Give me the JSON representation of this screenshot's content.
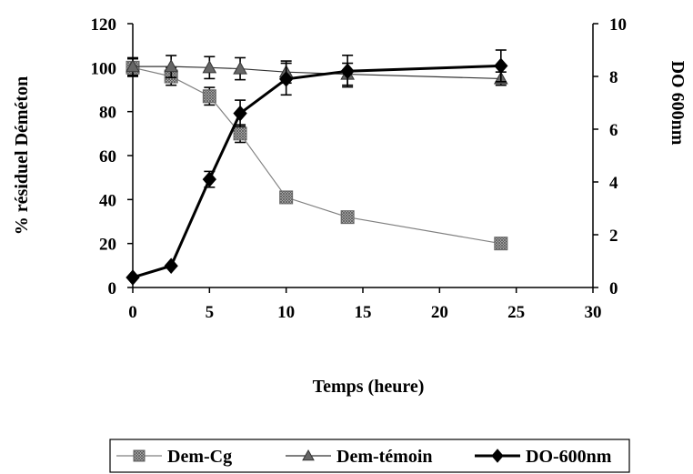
{
  "chart_data": {
    "type": "line",
    "xlabel": "Temps (heure)",
    "ylabel_left": "% résiduel Déméton",
    "ylabel_right": "DO 600nm",
    "xlim": [
      0,
      30
    ],
    "ylim_left": [
      0,
      120
    ],
    "ylim_right": [
      0,
      10
    ],
    "xticks": [
      "0",
      "5",
      "10",
      "15",
      "20",
      "25",
      "30"
    ],
    "yticks_left": [
      "0",
      "20",
      "40",
      "60",
      "80",
      "100",
      "120"
    ],
    "yticks_right": [
      "0",
      "2",
      "4",
      "6",
      "8",
      "10"
    ],
    "grid": false,
    "legend_position": "bottom",
    "series": [
      {
        "name": "Dem-Cg",
        "axis": "left",
        "marker": "square-hatched",
        "line_style": "thin",
        "color": "#808080",
        "x": [
          0,
          2.5,
          5,
          7,
          10,
          14,
          24
        ],
        "y": [
          100,
          96,
          87,
          70,
          41,
          32,
          20
        ],
        "error": [
          4,
          4,
          4,
          4,
          0,
          0,
          0
        ]
      },
      {
        "name": "Dem-témoin",
        "axis": "left",
        "marker": "triangle",
        "line_style": "thin",
        "color": "#333333",
        "x": [
          0,
          2.5,
          5,
          7,
          10,
          14,
          24
        ],
        "y": [
          100.5,
          100.5,
          100,
          99.5,
          98,
          97,
          95
        ],
        "error": [
          4,
          5,
          5,
          5,
          5,
          5,
          3
        ]
      },
      {
        "name": "DO-600nm",
        "axis": "right",
        "marker": "diamond",
        "line_style": "bold",
        "color": "#000000",
        "x": [
          0,
          2.5,
          5,
          7,
          10,
          14,
          24
        ],
        "y": [
          0.38,
          0.82,
          4.1,
          6.6,
          7.9,
          8.2,
          8.4
        ],
        "error": [
          0,
          0,
          0.3,
          0.5,
          0.6,
          0.6,
          0.6
        ]
      }
    ]
  }
}
